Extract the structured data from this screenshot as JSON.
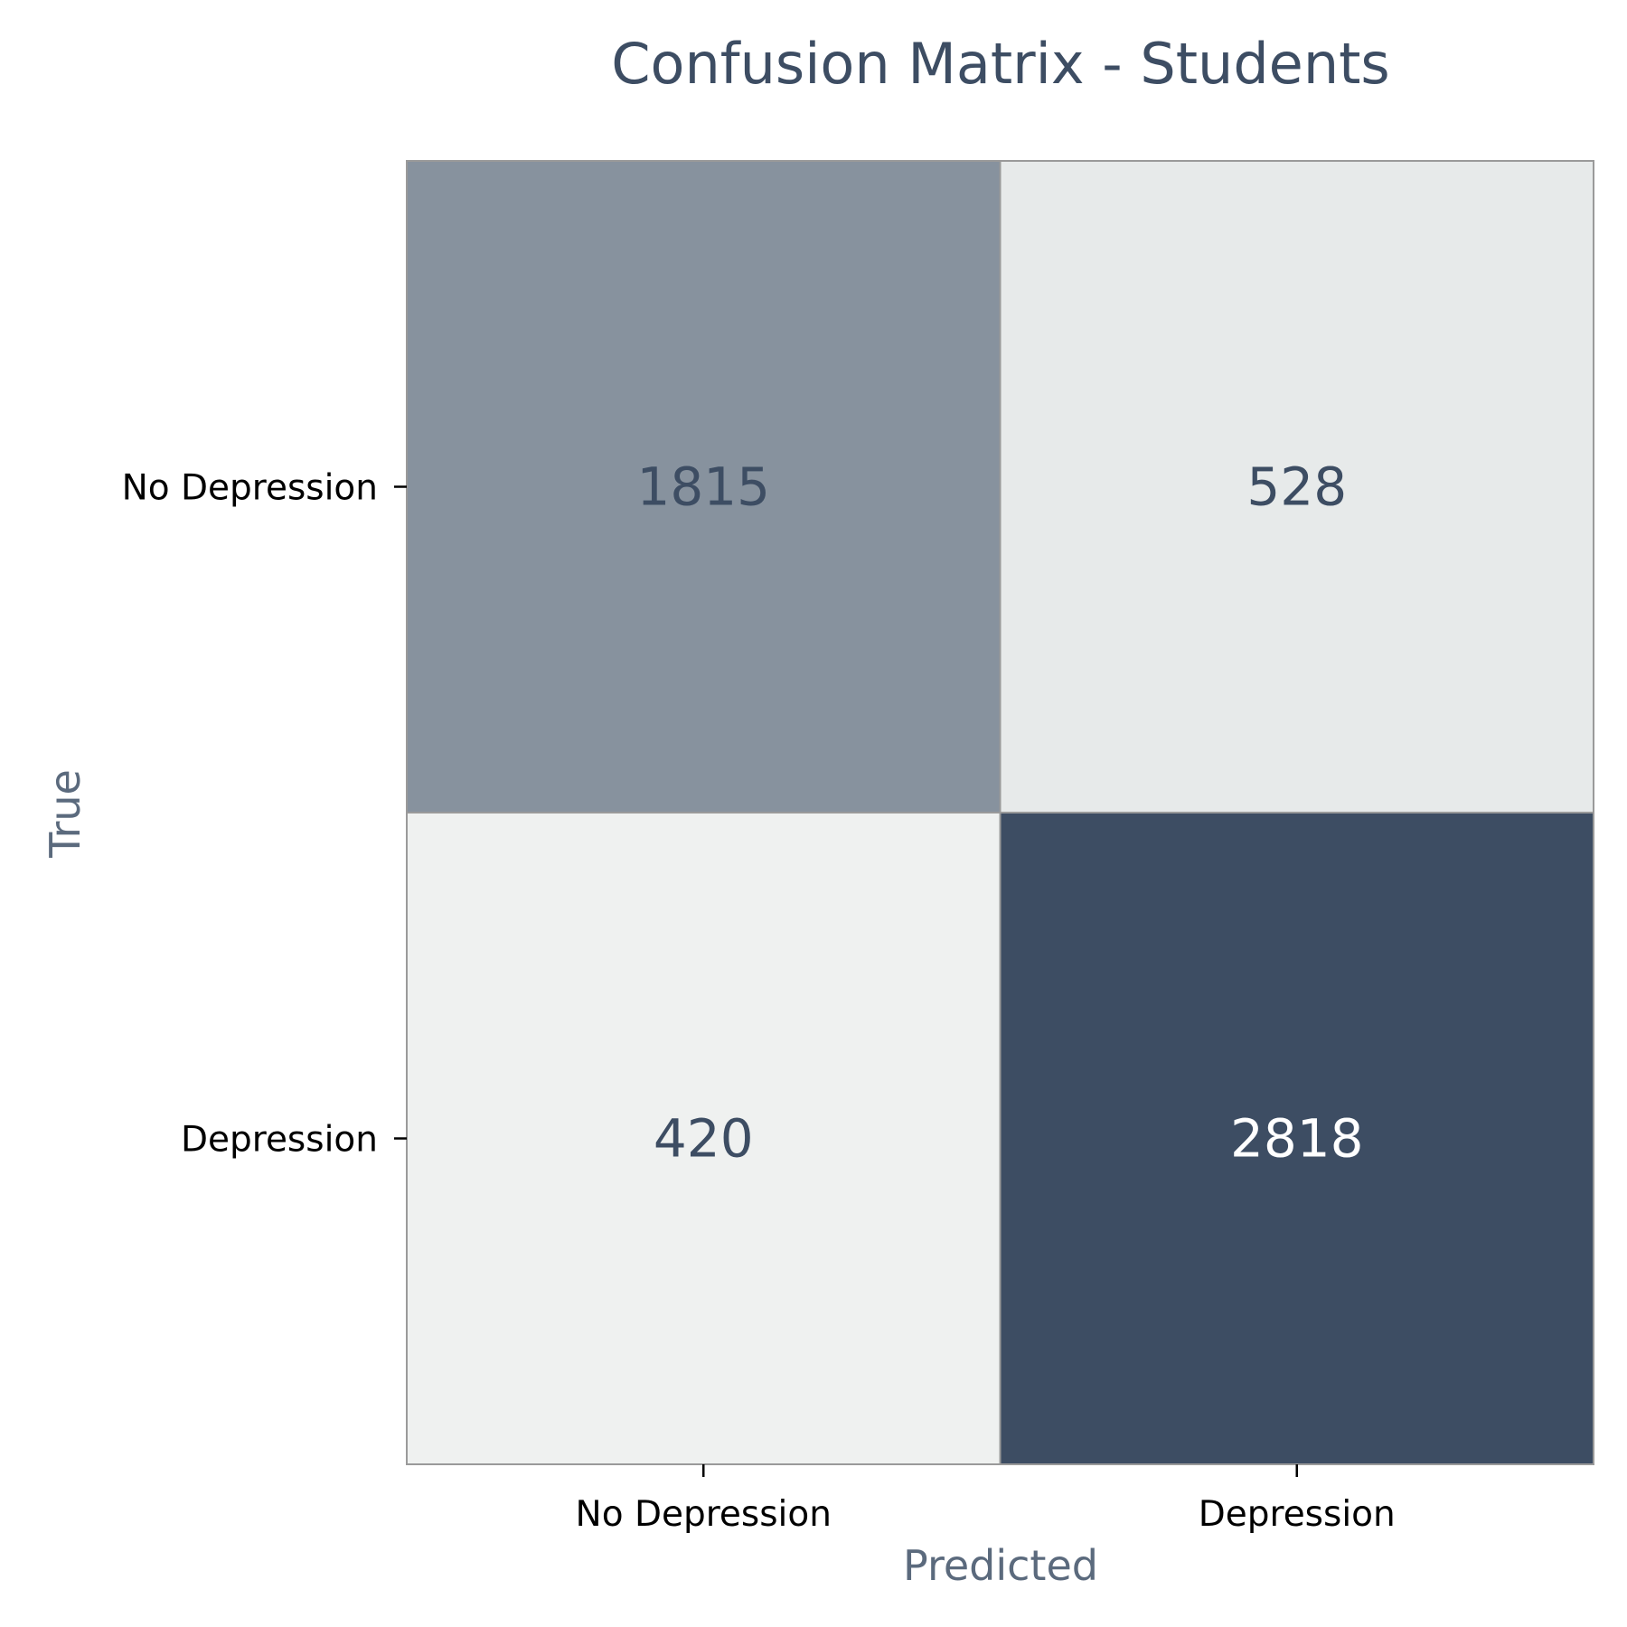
{
  "chart_data": {
    "type": "heatmap",
    "title": "Confusion Matrix - Students",
    "xlabel": "Predicted",
    "ylabel": "True",
    "x_categories": [
      "No Depression",
      "Depression"
    ],
    "y_categories": [
      "No Depression",
      "Depression"
    ],
    "values": [
      [
        1815,
        528
      ],
      [
        420,
        2818
      ]
    ],
    "colorbar": false,
    "grid": false,
    "colors": {
      "low": "#eff1f0",
      "high": "#3d4d63",
      "cell_border": "#9a9a9a",
      "text_on_light": "#3d4d63",
      "text_on_dark": "#ffffff",
      "title": "#3d4d63",
      "axis_label": "#5b6a7d"
    }
  }
}
